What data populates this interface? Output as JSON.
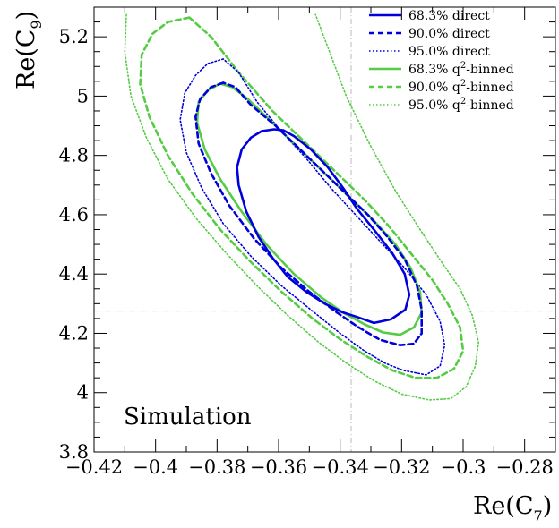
{
  "chart_data": {
    "type": "line",
    "title": "",
    "xlabel": "Re(C",
    "xlabel_sub": "7",
    "xlabel_close": ")",
    "ylabel": "Re(C",
    "ylabel_sub": "9",
    "ylabel_close": ")",
    "xlim": [
      -0.42,
      -0.27
    ],
    "ylim": [
      3.8,
      5.3
    ],
    "x_ticks": [
      {
        "value": -0.42,
        "label": "−0.42"
      },
      {
        "value": -0.4,
        "label": "−0.4"
      },
      {
        "value": -0.38,
        "label": "−0.38"
      },
      {
        "value": -0.36,
        "label": "−0.36"
      },
      {
        "value": -0.34,
        "label": "−0.34"
      },
      {
        "value": -0.32,
        "label": "−0.32"
      },
      {
        "value": -0.3,
        "label": "−0.3"
      },
      {
        "value": -0.28,
        "label": "−0.28"
      }
    ],
    "y_ticks": [
      {
        "value": 3.8,
        "label": "3.8"
      },
      {
        "value": 4.0,
        "label": "4"
      },
      {
        "value": 4.2,
        "label": "4.2"
      },
      {
        "value": 4.4,
        "label": "4.4"
      },
      {
        "value": 4.6,
        "label": "4.6"
      },
      {
        "value": 4.8,
        "label": "4.8"
      },
      {
        "value": 5.0,
        "label": "5"
      },
      {
        "value": 5.2,
        "label": "5.2"
      }
    ],
    "reference_lines": {
      "x": -0.3364,
      "y": 4.275
    },
    "annotation": "Simulation",
    "legend_position": "top-right",
    "grid": false,
    "series": [
      {
        "name": "68.3% direct",
        "name_main": "68.3% direct",
        "name_sup": "",
        "name_tail": "",
        "color": "#0000dd",
        "style": "solid",
        "x": [
          -0.3615,
          -0.3655,
          -0.369,
          -0.372,
          -0.3735,
          -0.373,
          -0.3705,
          -0.3665,
          -0.362,
          -0.357,
          -0.351,
          -0.345,
          -0.3395,
          -0.3345,
          -0.329,
          -0.3235,
          -0.3188,
          -0.3175,
          -0.319,
          -0.323,
          -0.329,
          -0.3345,
          -0.339,
          -0.344,
          -0.3495,
          -0.355,
          -0.3585,
          -0.3615
        ],
        "y": [
          4.888,
          4.882,
          4.86,
          4.82,
          4.76,
          4.7,
          4.61,
          4.525,
          4.455,
          4.39,
          4.34,
          4.3,
          4.272,
          4.255,
          4.235,
          4.247,
          4.28,
          4.33,
          4.4,
          4.47,
          4.55,
          4.62,
          4.69,
          4.76,
          4.82,
          4.865,
          4.885,
          4.888
        ]
      },
      {
        "name": "90.0% direct",
        "name_main": "90.0% direct",
        "name_sup": "",
        "name_tail": "",
        "color": "#0000dd",
        "style": "dashed",
        "x": [
          -0.378,
          -0.382,
          -0.3855,
          -0.387,
          -0.386,
          -0.382,
          -0.376,
          -0.368,
          -0.359,
          -0.35,
          -0.341,
          -0.334,
          -0.327,
          -0.3205,
          -0.316,
          -0.3135,
          -0.3135,
          -0.315,
          -0.319,
          -0.325,
          -0.331,
          -0.338,
          -0.345,
          -0.353,
          -0.361,
          -0.369,
          -0.374,
          -0.378
        ],
        "y": [
          5.045,
          5.03,
          4.99,
          4.93,
          4.84,
          4.74,
          4.63,
          4.52,
          4.42,
          4.34,
          4.27,
          4.22,
          4.178,
          4.16,
          4.165,
          4.2,
          4.28,
          4.36,
          4.45,
          4.53,
          4.6,
          4.67,
          4.74,
          4.82,
          4.9,
          4.97,
          5.03,
          5.045
        ]
      },
      {
        "name": "95.0% direct",
        "name_main": "95.0% direct",
        "name_sup": "",
        "name_tail": "",
        "color": "#0000dd",
        "style": "dotted",
        "x": [
          -0.378,
          -0.383,
          -0.387,
          -0.3905,
          -0.392,
          -0.39,
          -0.385,
          -0.378,
          -0.369,
          -0.359,
          -0.349,
          -0.34,
          -0.332,
          -0.3255,
          -0.3195,
          -0.312,
          -0.3075,
          -0.306,
          -0.3075,
          -0.312,
          -0.319,
          -0.327,
          -0.335,
          -0.343,
          -0.351,
          -0.359,
          -0.367,
          -0.373,
          -0.378
        ],
        "y": [
          5.125,
          5.11,
          5.07,
          5.01,
          4.92,
          4.81,
          4.69,
          4.57,
          4.46,
          4.36,
          4.275,
          4.2,
          4.14,
          4.1,
          4.075,
          4.06,
          4.09,
          4.16,
          4.24,
          4.33,
          4.42,
          4.51,
          4.6,
          4.69,
          4.79,
          4.88,
          4.98,
          5.08,
          5.125
        ]
      },
      {
        "name": "68.3% q2-binned",
        "name_main": "68.3% q",
        "name_sup": "2",
        "name_tail": "-binned",
        "color": "#55cc44",
        "style": "solid",
        "x": [
          -0.379,
          -0.383,
          -0.386,
          -0.3865,
          -0.384,
          -0.379,
          -0.372,
          -0.364,
          -0.355,
          -0.346,
          -0.339,
          -0.332,
          -0.326,
          -0.3205,
          -0.316,
          -0.3135,
          -0.314,
          -0.317,
          -0.322,
          -0.329,
          -0.336,
          -0.343,
          -0.35,
          -0.357,
          -0.364,
          -0.37,
          -0.375,
          -0.379
        ],
        "y": [
          5.042,
          5.02,
          4.98,
          4.91,
          4.82,
          4.72,
          4.61,
          4.5,
          4.4,
          4.32,
          4.27,
          4.23,
          4.203,
          4.195,
          4.22,
          4.27,
          4.34,
          4.42,
          4.5,
          4.58,
          4.65,
          4.72,
          4.79,
          4.86,
          4.93,
          4.99,
          5.03,
          5.042
        ]
      },
      {
        "name": "90.0% q2-binned",
        "name_main": "90.0% q",
        "name_sup": "2",
        "name_tail": "-binned",
        "color": "#55cc44",
        "style": "dashed",
        "x": [
          -0.389,
          -0.396,
          -0.401,
          -0.4045,
          -0.405,
          -0.402,
          -0.396,
          -0.388,
          -0.379,
          -0.369,
          -0.359,
          -0.349,
          -0.34,
          -0.331,
          -0.323,
          -0.3155,
          -0.3085,
          -0.303,
          -0.3,
          -0.301,
          -0.305,
          -0.31,
          -0.317,
          -0.324,
          -0.332,
          -0.341,
          -0.351,
          -0.362,
          -0.373,
          -0.382,
          -0.389
        ],
        "y": [
          5.265,
          5.25,
          5.21,
          5.14,
          5.04,
          4.93,
          4.8,
          4.67,
          4.55,
          4.44,
          4.34,
          4.25,
          4.18,
          4.12,
          4.075,
          4.05,
          4.05,
          4.08,
          4.14,
          4.22,
          4.3,
          4.38,
          4.47,
          4.56,
          4.65,
          4.74,
          4.84,
          4.95,
          5.08,
          5.2,
          5.265
        ]
      },
      {
        "name": "95.0% q2-binned",
        "name_main": "95.0% q",
        "name_sup": "2",
        "name_tail": "-binned",
        "color": "#55cc44",
        "style": "dotted",
        "x": [
          -0.4095,
          -0.41,
          -0.408,
          -0.403,
          -0.396,
          -0.387,
          -0.377,
          -0.367,
          -0.357,
          -0.347,
          -0.338,
          -0.329,
          -0.32,
          -0.311,
          -0.304,
          -0.299,
          -0.296,
          -0.295,
          -0.297,
          -0.301,
          -0.307,
          -0.314,
          -0.322,
          -0.33,
          -0.338,
          -0.348
        ],
        "y": [
          5.275,
          5.15,
          5.0,
          4.86,
          4.72,
          4.59,
          4.47,
          4.36,
          4.26,
          4.17,
          4.1,
          4.04,
          3.995,
          3.975,
          3.98,
          4.02,
          4.09,
          4.17,
          4.26,
          4.35,
          4.44,
          4.55,
          4.68,
          4.83,
          5.0,
          5.275
        ]
      }
    ]
  }
}
